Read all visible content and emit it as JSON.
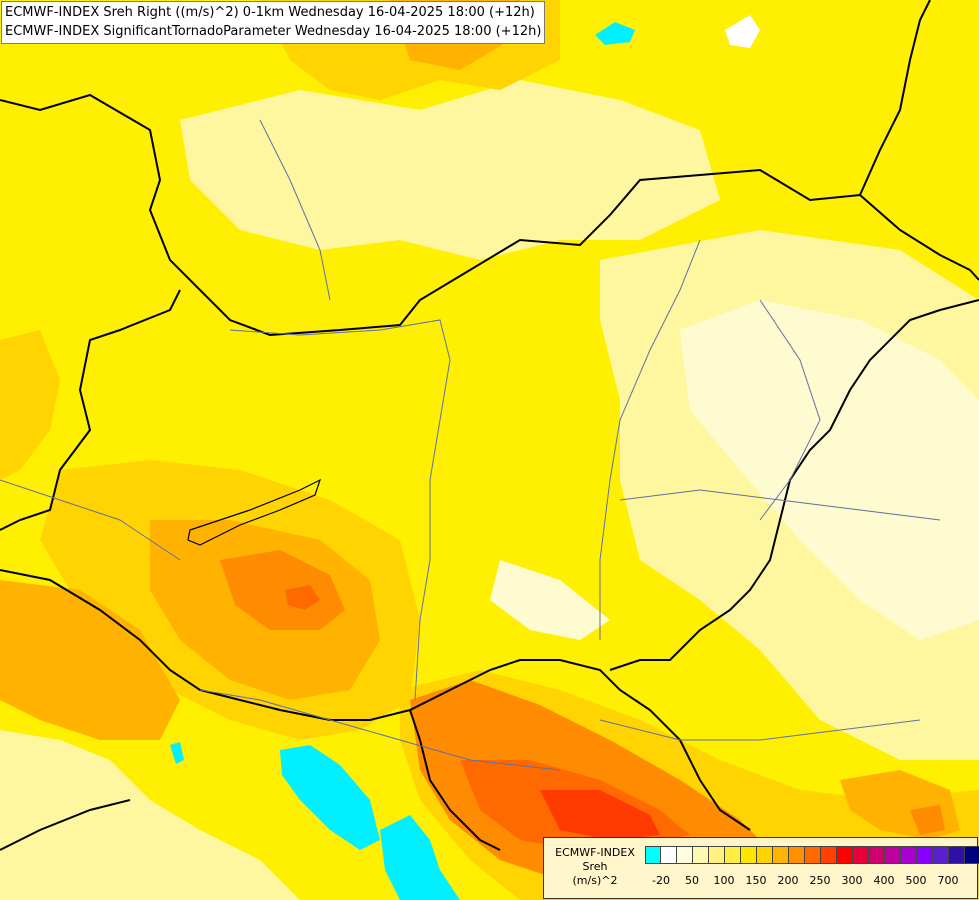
{
  "header": {
    "line1": "ECMWF-INDEX Sreh Right ((m/s)^2) 0-1km Wednesday 16-04-2025 18:00 (+12h)",
    "line2": "ECMWF-INDEX SignificantTornadoParameter Wednesday 16-04-2025 18:00 (+12h)"
  },
  "legend": {
    "title_line1": "ECMWF-INDEX",
    "title_line2": "Sreh",
    "title_line3": "(m/s)^2",
    "colors": [
      "#00ffff",
      "#ffffff",
      "#fffde0",
      "#fff8b0",
      "#fff280",
      "#ffee40",
      "#ffe600",
      "#ffd200",
      "#ffb400",
      "#ff9000",
      "#ff6a00",
      "#ff4000",
      "#ff0000",
      "#e8003c",
      "#d0006e",
      "#c0009e",
      "#a800d0",
      "#8800ff",
      "#5a20d0",
      "#3010a8",
      "#000080"
    ],
    "ticks": [
      "-20",
      "50",
      "100",
      "150",
      "200",
      "250",
      "300",
      "400",
      "500",
      "700"
    ]
  },
  "map": {
    "icon": "weather-map-hungary-sreh",
    "colors": {
      "base": "#ffef00",
      "pale": "#fff7a0",
      "paler": "#fffbd0",
      "light_orange": "#ffd400",
      "orange": "#ffb200",
      "dark_orange": "#ff8c00",
      "red_orange": "#ff6a00",
      "red": "#ff3a00",
      "water": "#00f0ff"
    }
  }
}
